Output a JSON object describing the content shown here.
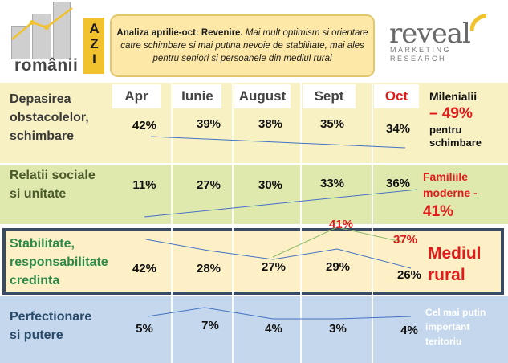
{
  "header": {
    "logo_romanii": "românii",
    "logo_azi": "AZI",
    "summary_bold": "Analiza aprilie-oct: Revenire.",
    "summary_italic": " Mai mult optimism si orientare catre schimbare si mai putina nevoie de stabilitate, mai ales pentru seniori si persoanele din mediul rural",
    "reveal_brand": "reveal",
    "reveal_sub_1": "MARKETING",
    "reveal_sub_2": "RESEARCH"
  },
  "columns": [
    "Apr",
    "Iunie",
    "August",
    "Sept",
    "Oct"
  ],
  "rows": [
    {
      "label_1": "Depasirea",
      "label_2": "obstacolelor,",
      "label_3": "schimbare",
      "values": [
        "42%",
        "39%",
        "38%",
        "35%",
        "34%"
      ]
    },
    {
      "label_1": "Relatii sociale",
      "label_2": "si unitate",
      "values": [
        "11%",
        "27%",
        "30%",
        "33%",
        "36%"
      ]
    },
    {
      "label_1": "Stabilitate,",
      "label_2": "responsabilitate",
      "label_3": "credinta",
      "values": [
        "42%",
        "28%",
        "27%",
        "29%",
        "26%"
      ]
    },
    {
      "label_1": "Perfectionare",
      "label_2": "si putere",
      "values": [
        "5%",
        "7%",
        "4%",
        "3%",
        "4%"
      ]
    }
  ],
  "callouts": {
    "mil_1": "Milenialii",
    "mil_2": "– 49%",
    "mil_3": "pentru",
    "mil_4": "schimbare",
    "fam_1": "Familiile",
    "fam_2": "moderne -",
    "fam_3": "41%",
    "rural_41": "41%",
    "rural_37": "37%",
    "rural_1": "Mediul",
    "rural_2": "rural",
    "least_1": "Cel mai putin",
    "least_2": "important",
    "least_3": "teritoriu"
  },
  "colors": {
    "red": "#e01b1b",
    "green_text": "#2e8a4a",
    "navy_text": "#2a4a6a",
    "olive_text": "#3d5a2a",
    "blue_line": "#4472c4",
    "green_line": "#8aba6a"
  }
}
